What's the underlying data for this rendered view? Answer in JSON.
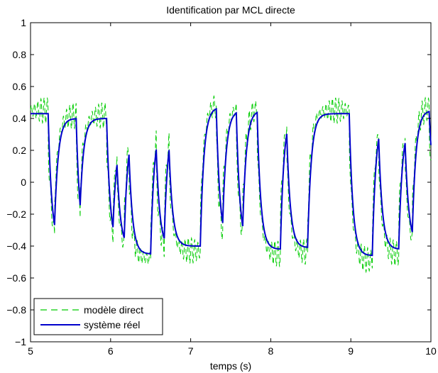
{
  "chart_data": {
    "type": "line",
    "title": "Identification par MCL directe",
    "xlabel": "temps (s)",
    "ylabel": "",
    "xlim": [
      5,
      10
    ],
    "ylim": [
      -1,
      1
    ],
    "x_ticks": [
      "5",
      "6",
      "7",
      "8",
      "9",
      "10"
    ],
    "y_ticks": [
      "−1",
      "−0.8",
      "−0.6",
      "−0.4",
      "−0.2",
      "0",
      "0.2",
      "0.4",
      "0.6",
      "0.8",
      "1"
    ],
    "legend_position": "bottom-left",
    "grid": false,
    "series": [
      {
        "name": "modèle direct",
        "style": "dashed",
        "color": "#00cc00",
        "oscillation_amplitude": 0.08,
        "oscillation_period": 0.04
      },
      {
        "name": "système réel",
        "style": "solid",
        "color": "#0000cc",
        "tau": 0.045,
        "segments": [
          {
            "t_start": 5.0,
            "t_end": 5.22,
            "level": 0.43
          },
          {
            "t_start": 5.22,
            "t_end": 5.3,
            "level": -0.41
          },
          {
            "t_start": 5.3,
            "t_end": 5.57,
            "level": 0.4
          },
          {
            "t_start": 5.57,
            "t_end": 5.62,
            "level": -0.41
          },
          {
            "t_start": 5.62,
            "t_end": 5.95,
            "level": 0.4
          },
          {
            "t_start": 5.95,
            "t_end": 6.03,
            "level": -0.42
          },
          {
            "t_start": 6.03,
            "t_end": 6.08,
            "level": 0.3
          },
          {
            "t_start": 6.08,
            "t_end": 6.17,
            "level": -0.42
          },
          {
            "t_start": 6.17,
            "t_end": 6.23,
            "level": 0.36
          },
          {
            "t_start": 6.23,
            "t_end": 6.5,
            "level": -0.45
          },
          {
            "t_start": 6.5,
            "t_end": 6.57,
            "level": 0.38
          },
          {
            "t_start": 6.57,
            "t_end": 6.67,
            "level": -0.42
          },
          {
            "t_start": 6.67,
            "t_end": 6.73,
            "level": 0.4
          },
          {
            "t_start": 6.73,
            "t_end": 7.12,
            "level": -0.4
          },
          {
            "t_start": 7.12,
            "t_end": 7.32,
            "level": 0.47
          },
          {
            "t_start": 7.32,
            "t_end": 7.4,
            "level": -0.4
          },
          {
            "t_start": 7.4,
            "t_end": 7.57,
            "level": 0.45
          },
          {
            "t_start": 7.57,
            "t_end": 7.65,
            "level": -0.42
          },
          {
            "t_start": 7.65,
            "t_end": 7.83,
            "level": 0.45
          },
          {
            "t_start": 7.83,
            "t_end": 8.12,
            "level": -0.42
          },
          {
            "t_start": 8.12,
            "t_end": 8.2,
            "level": 0.45
          },
          {
            "t_start": 8.2,
            "t_end": 8.46,
            "level": -0.41
          },
          {
            "t_start": 8.46,
            "t_end": 8.98,
            "level": 0.43
          },
          {
            "t_start": 8.98,
            "t_end": 9.27,
            "level": -0.46
          },
          {
            "t_start": 9.27,
            "t_end": 9.35,
            "level": 0.42
          },
          {
            "t_start": 9.35,
            "t_end": 9.6,
            "level": -0.42
          },
          {
            "t_start": 9.6,
            "t_end": 9.68,
            "level": 0.38
          },
          {
            "t_start": 9.68,
            "t_end": 9.77,
            "level": -0.4
          },
          {
            "t_start": 9.77,
            "t_end": 9.98,
            "level": 0.45
          },
          {
            "t_start": 9.98,
            "t_end": 10.0,
            "level": -0.1
          }
        ]
      }
    ]
  }
}
